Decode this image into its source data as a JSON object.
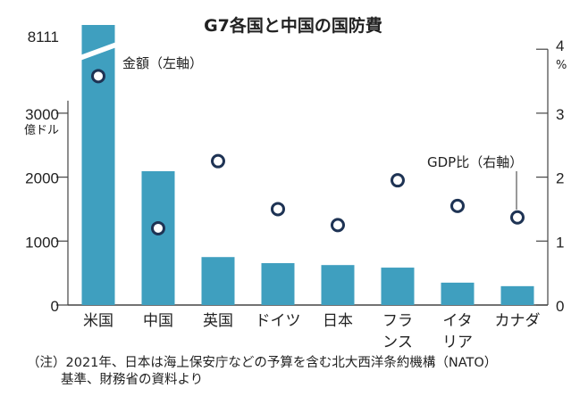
{
  "chart_data": {
    "type": "bar",
    "title": "G7各国と中国の国防費",
    "categories": [
      "米国",
      "中国",
      "英国",
      "ドイツ",
      "日本",
      "フランス",
      "イタリア",
      "カナダ"
    ],
    "category_lines": [
      [
        "米国"
      ],
      [
        "中国"
      ],
      [
        "英国"
      ],
      [
        "ドイツ"
      ],
      [
        "日本"
      ],
      [
        "フラ",
        "ンス"
      ],
      [
        "イタ",
        "リア"
      ],
      [
        "カナダ"
      ]
    ],
    "series": [
      {
        "name": "金額（左軸）",
        "type": "bar",
        "axis": "left",
        "unit": "億ドル",
        "values": [
          8111,
          2093,
          750,
          655,
          625,
          585,
          350,
          295
        ],
        "color": "#3f9fbf"
      },
      {
        "name": "GDP比（右軸）",
        "type": "scatter",
        "axis": "right",
        "unit": "%",
        "values": [
          3.58,
          1.2,
          2.25,
          1.5,
          1.25,
          1.95,
          1.55,
          1.37
        ],
        "color": "#1e3354"
      }
    ],
    "left_axis": {
      "ticks": [
        0,
        1000,
        2000,
        3000
      ],
      "unit_label": "億ドル",
      "ylim": [
        0,
        3000
      ],
      "break": true,
      "break_label": "8111"
    },
    "right_axis": {
      "ticks": [
        0,
        1,
        2,
        3,
        4
      ],
      "unit_label": "%",
      "ylim": [
        0,
        4
      ]
    },
    "annotations": {
      "bar_label": "金額（左軸）",
      "dot_label": "GDP比（右軸）"
    },
    "grid": false,
    "legend": "inline-annotations"
  },
  "note": {
    "line1": "（注）2021年、日本は海上保安庁などの予算を含む北大西洋条約機構（NATO）",
    "line2": "基準、財務省の資料より"
  }
}
